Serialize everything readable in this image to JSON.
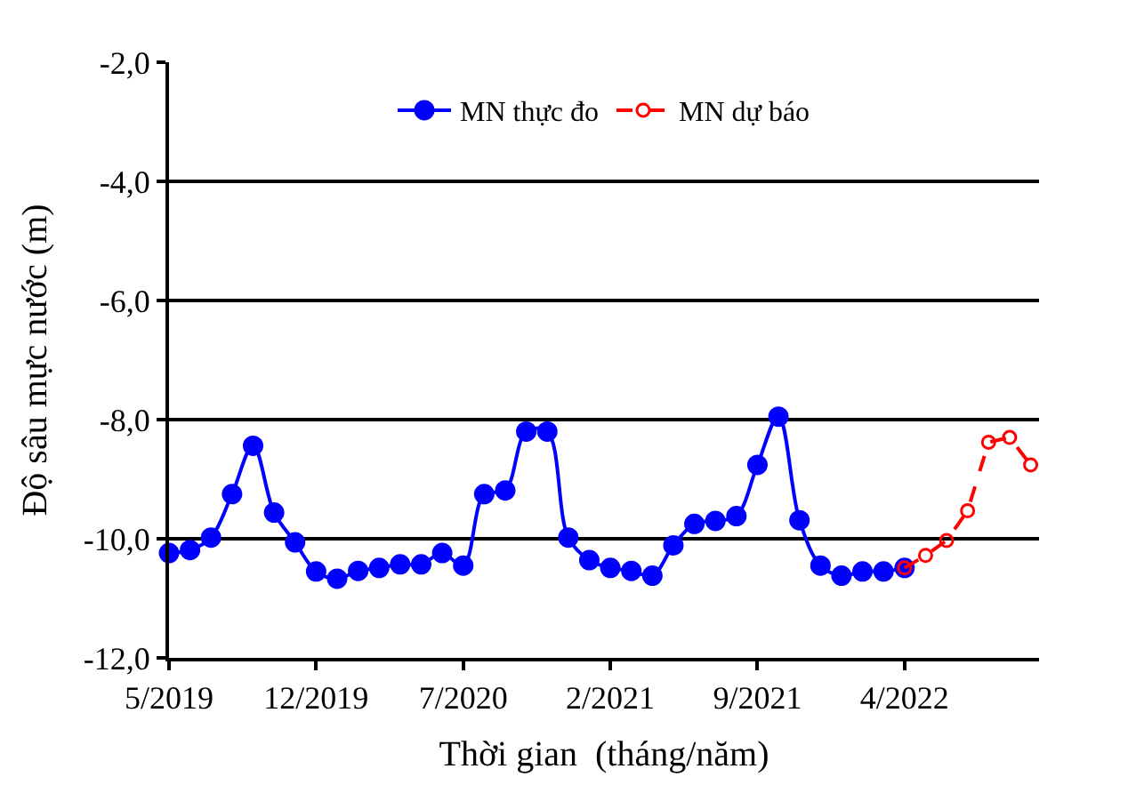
{
  "chart_data": {
    "type": "line",
    "xlabel": "Thời gian  (tháng/năm)",
    "ylabel": "Độ sâu mực nước (m)",
    "categories": [
      "5/2019",
      null,
      null,
      null,
      null,
      null,
      null,
      "12/2019",
      null,
      null,
      null,
      null,
      null,
      null,
      "7/2020",
      null,
      null,
      null,
      null,
      null,
      null,
      "2/2021",
      null,
      null,
      null,
      null,
      null,
      null,
      "9/2021",
      null,
      null,
      null,
      null,
      null,
      null,
      "4/2022",
      null,
      null,
      null,
      null,
      null,
      null
    ],
    "series": [
      {
        "name": "MN thực đo",
        "color": "#0000ff",
        "marker": "circle",
        "line_style": "solid",
        "values": [
          -10.24,
          -10.19,
          -9.98,
          -9.25,
          -8.44,
          -9.56,
          -10.06,
          -10.55,
          -10.67,
          -10.54,
          -10.49,
          -10.43,
          -10.43,
          -10.24,
          -10.45,
          -9.25,
          -9.19,
          -8.2,
          -8.2,
          -9.98,
          -10.36,
          -10.49,
          -10.54,
          -10.62,
          -10.11,
          -9.75,
          -9.7,
          -9.62,
          -8.76,
          -7.95,
          -9.69,
          -10.45,
          -10.62,
          -10.55,
          -10.55,
          -10.49,
          null,
          null,
          null,
          null,
          null,
          null
        ]
      },
      {
        "name": "MN dự báo",
        "color": "#ff0000",
        "marker": "circle-open",
        "line_style": "dashed",
        "values": [
          null,
          null,
          null,
          null,
          null,
          null,
          null,
          null,
          null,
          null,
          null,
          null,
          null,
          null,
          null,
          null,
          null,
          null,
          null,
          null,
          null,
          null,
          null,
          null,
          null,
          null,
          null,
          null,
          null,
          null,
          null,
          null,
          null,
          null,
          null,
          -10.49,
          -10.28,
          -10.03,
          -9.53,
          -8.38,
          -8.3,
          -8.76
        ]
      }
    ],
    "ylim": [
      -12,
      -2
    ],
    "yticks": [
      {
        "value": -12,
        "label": "-12,0"
      },
      {
        "value": -10,
        "label": "-10,0"
      },
      {
        "value": -8,
        "label": "-8,0"
      },
      {
        "value": -6,
        "label": "-6,0"
      },
      {
        "value": -4,
        "label": "-4,0"
      },
      {
        "value": -2,
        "label": "-2,0"
      }
    ],
    "grid": "y",
    "legend": "top"
  }
}
